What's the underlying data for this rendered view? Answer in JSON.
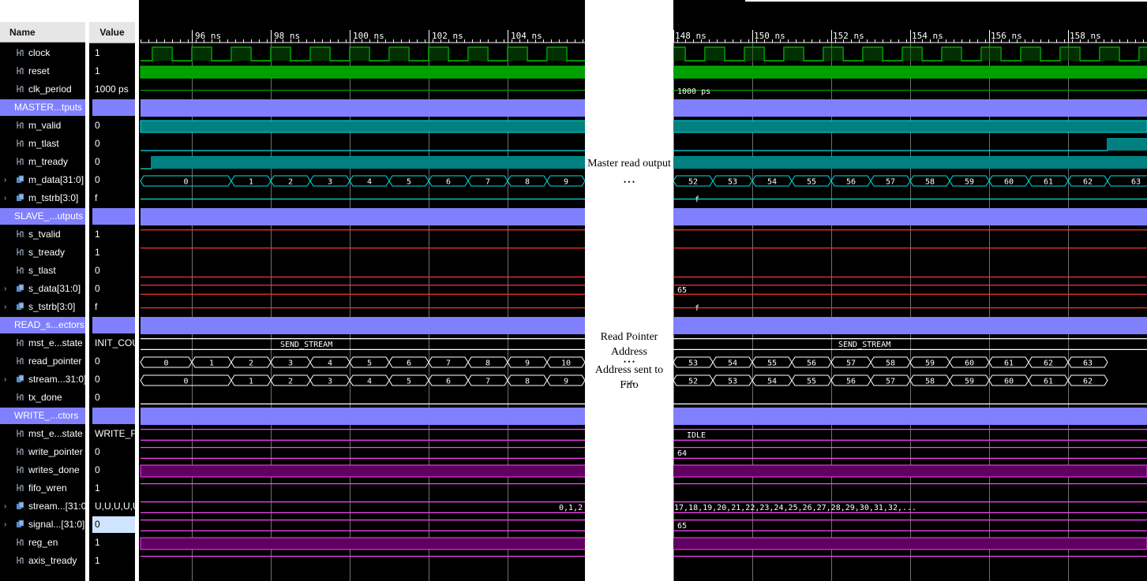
{
  "header": {
    "name_label": "Name",
    "value_label": "Value"
  },
  "rows": [
    {
      "name": "clock",
      "value": "1",
      "type": "bit",
      "expand": false
    },
    {
      "name": "reset",
      "value": "1",
      "type": "bit",
      "expand": false
    },
    {
      "name": "clk_period",
      "value": "1000 ps",
      "type": "bit",
      "expand": false
    },
    {
      "name": "MASTER...tputs",
      "value": "",
      "type": "group",
      "expand": false
    },
    {
      "name": "m_valid",
      "value": "0",
      "type": "bit",
      "expand": false
    },
    {
      "name": "m_tlast",
      "value": "0",
      "type": "bit",
      "expand": false
    },
    {
      "name": "m_tready",
      "value": "0",
      "type": "bit",
      "expand": false
    },
    {
      "name": "m_data[31:0]",
      "value": "0",
      "type": "bus",
      "expand": true
    },
    {
      "name": "m_tstrb[3:0]",
      "value": "f",
      "type": "bus",
      "expand": true
    },
    {
      "name": "SLAVE_...utputs",
      "value": "",
      "type": "group",
      "expand": false
    },
    {
      "name": "s_tvalid",
      "value": "1",
      "type": "bit",
      "expand": false
    },
    {
      "name": "s_tready",
      "value": "1",
      "type": "bit",
      "expand": false
    },
    {
      "name": "s_tlast",
      "value": "0",
      "type": "bit",
      "expand": false
    },
    {
      "name": "s_data[31:0]",
      "value": "0",
      "type": "bus",
      "expand": true
    },
    {
      "name": "s_tstrb[3:0]",
      "value": "f",
      "type": "bus",
      "expand": true
    },
    {
      "name": "READ_s...ectors",
      "value": "",
      "type": "group",
      "expand": false
    },
    {
      "name": "mst_e...state",
      "value": "INIT_COU",
      "type": "bit",
      "expand": false
    },
    {
      "name": "read_pointer",
      "value": "0",
      "type": "bit",
      "expand": false
    },
    {
      "name": "stream...31:0]",
      "value": "0",
      "type": "bus",
      "expand": true
    },
    {
      "name": "tx_done",
      "value": "0",
      "type": "bit",
      "expand": false
    },
    {
      "name": "WRITE_...ctors",
      "value": "",
      "type": "group",
      "expand": false
    },
    {
      "name": "mst_e...state",
      "value": "WRITE_F",
      "type": "bit",
      "expand": false
    },
    {
      "name": "write_pointer",
      "value": "0",
      "type": "bit",
      "expand": false
    },
    {
      "name": "writes_done",
      "value": "0",
      "type": "bit",
      "expand": false
    },
    {
      "name": "fifo_wren",
      "value": "1",
      "type": "bit",
      "expand": false
    },
    {
      "name": "stream...[31:0]",
      "value": "U,U,U,U,U",
      "type": "bus",
      "expand": true
    },
    {
      "name": "signal...[31:0]",
      "value": "0",
      "type": "bus",
      "expand": true,
      "selected": true
    },
    {
      "name": "reg_en",
      "value": "1",
      "type": "bit",
      "expand": false
    },
    {
      "name": "axis_tready",
      "value": "1",
      "type": "bit",
      "expand": false
    }
  ],
  "timeline": {
    "left_labels": [
      "96 ns",
      "98 ns",
      "100 ns",
      "102 ns",
      "104 ns"
    ],
    "right_labels": [
      "148 ns",
      "150 ns",
      "152 ns",
      "154 ns",
      "156 ns",
      "158 ns"
    ]
  },
  "waveforms": {
    "clk_period_value": "1000 ps",
    "m_data_left": [
      "0",
      "1",
      "2",
      "3",
      "4",
      "5",
      "6",
      "7",
      "8",
      "9"
    ],
    "m_data_right": [
      "52",
      "53",
      "54",
      "55",
      "56",
      "57",
      "58",
      "59",
      "60",
      "61",
      "62",
      "63"
    ],
    "m_tstrb_value": "f",
    "s_data_value": "65",
    "s_tstrb_value": "f",
    "read_state_value": "SEND_STREAM",
    "read_pointer_left": [
      "0",
      "1",
      "2",
      "3",
      "4",
      "5",
      "6",
      "7",
      "8",
      "9",
      "10"
    ],
    "read_pointer_right": [
      "53",
      "54",
      "55",
      "56",
      "57",
      "58",
      "59",
      "60",
      "61",
      "62",
      "63"
    ],
    "stream_left": [
      "0",
      "1",
      "2",
      "3",
      "4",
      "5",
      "6",
      "7",
      "8",
      "9"
    ],
    "stream_right": [
      "52",
      "53",
      "54",
      "55",
      "56",
      "57",
      "58",
      "59",
      "60",
      "61",
      "62"
    ],
    "write_state_value": "IDLE",
    "write_pointer_value": "64",
    "stream_write_left": "0,1,2",
    "stream_write_right": "17,18,19,20,21,22,23,24,25,26,27,28,29,30,31,32,...",
    "signal_value": "65"
  },
  "annotations": {
    "master_read": "Master read output",
    "read_pointer": "Read Pointer Address",
    "address_fifo": "Address sent to Fifo",
    "ellipsis": "• • •"
  },
  "colors": {
    "clock": "#00c000",
    "bus_green": "#00a000",
    "teal": "#008080",
    "cyan": "#00e0e0",
    "red": "#ff3030",
    "white": "#ffffff",
    "magenta": "#ff40ff",
    "purple_fill": "#600060",
    "group": "#8080ff"
  }
}
